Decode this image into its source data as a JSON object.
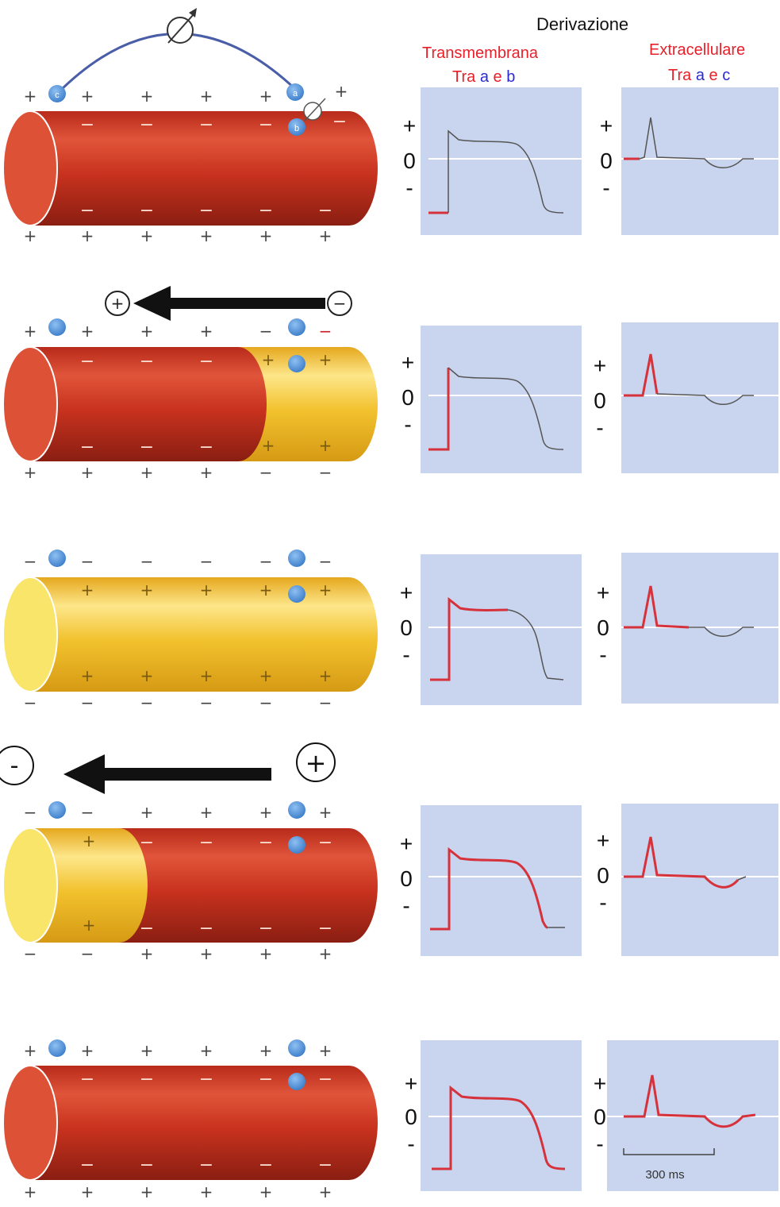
{
  "header": {
    "title": "Derivazione",
    "trans_title": "Transmembrana",
    "trans_sub_prefix": "Tra",
    "trans_sub_a": "a",
    "trans_sub_e": "e",
    "trans_sub_b": "b",
    "extra_title": "Extracellulare",
    "extra_sub_prefix": "Tra",
    "extra_sub_a": "a",
    "extra_sub_e": "e",
    "extra_sub_c": "c"
  },
  "electrodes": {
    "c": "c",
    "a": "a",
    "b": "b"
  },
  "axis_labels": {
    "plus": "+",
    "zero": "0",
    "minus": "-"
  },
  "arrow_row2": {
    "head_sign": "+",
    "tail_sign": "−"
  },
  "arrow_row4": {
    "head_sign": "-",
    "tail_sign": "+"
  },
  "scale_bar": {
    "label": "300 ms"
  },
  "colors": {
    "depolarized_red": "#c8321e",
    "repolarizing_yellow": "#f2c22e",
    "electrode_blue": "#4a8fd8",
    "panel_bg": "#c9d4ee",
    "trace_red": "#d6323c",
    "trace_gray": "#555555"
  },
  "rows": [
    {
      "state": "resting",
      "trace_color_trans": "gray",
      "trace_color_extra": "gray"
    },
    {
      "state": "depolarizing",
      "trace_color_trans": "partial",
      "trace_color_extra": "partial"
    },
    {
      "state": "plateau",
      "trace_color_trans": "partial",
      "trace_color_extra": "partial"
    },
    {
      "state": "repolarizing",
      "trace_color_trans": "partial",
      "trace_color_extra": "partial"
    },
    {
      "state": "recovered",
      "trace_color_trans": "red",
      "trace_color_extra": "red"
    }
  ]
}
